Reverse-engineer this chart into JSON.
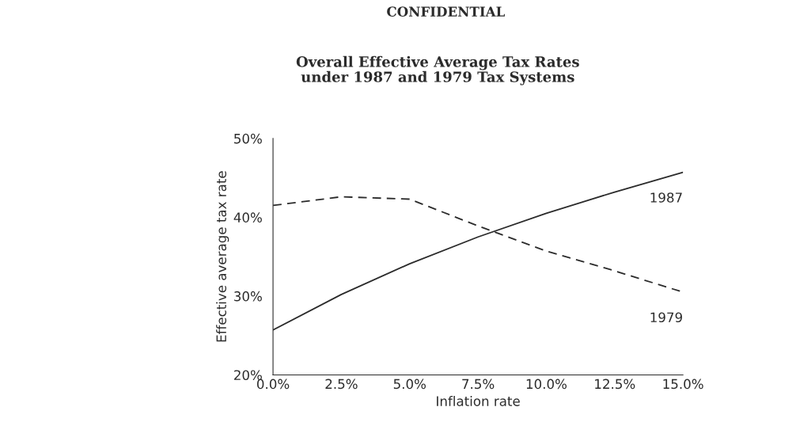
{
  "chart_data": {
    "type": "line",
    "title": "Overall Effective Average Tax Rates\nunder 1987 and 1979 Tax Systems",
    "xlabel": "Inflation rate",
    "ylabel": "Effective average tax rate",
    "x": [
      0,
      2.5,
      5,
      7.5,
      10,
      12.5,
      15
    ],
    "series": [
      {
        "name": "1987",
        "color": "#2b2b2b",
        "line_style": "solid",
        "values": [
          25.7,
          30.2,
          34.1,
          37.5,
          40.5,
          43.2,
          45.7
        ]
      },
      {
        "name": "1979",
        "color": "#2b2b2b",
        "line_style": "dashed",
        "values": [
          41.5,
          42.6,
          42.3,
          38.9,
          35.7,
          33.2,
          30.5
        ]
      }
    ],
    "annotations": [
      "CONFIDENTIAL"
    ],
    "xlim": [
      0,
      15
    ],
    "ylim": [
      20,
      50
    ],
    "xticks": [
      {
        "value": 0,
        "label": "0.0%"
      },
      {
        "value": 2.5,
        "label": "2.5%"
      },
      {
        "value": 5,
        "label": "5.0%"
      },
      {
        "value": 7.5,
        "label": "7.5%"
      },
      {
        "value": 10,
        "label": "10.0%"
      },
      {
        "value": 12.5,
        "label": "12.5%"
      },
      {
        "value": 15,
        "label": "15.0%"
      }
    ],
    "yticks": [
      {
        "value": 20,
        "label": "20%"
      },
      {
        "value": 30,
        "label": "30%"
      },
      {
        "value": 40,
        "label": "40%"
      },
      {
        "value": 50,
        "label": "50%"
      }
    ],
    "grid": false,
    "legend": false
  }
}
